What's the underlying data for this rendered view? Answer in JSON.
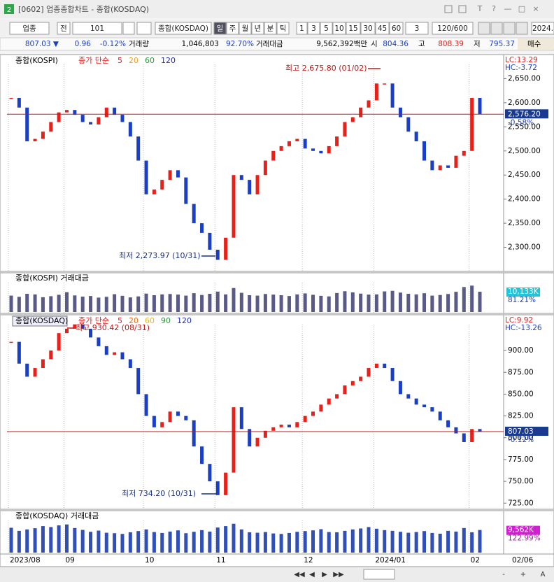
{
  "window": {
    "number": "2",
    "title": "[0602] 업종종합차트 - 종합(KOSDAQ)",
    "controls": [
      "T",
      "?",
      "—",
      "□",
      "×"
    ]
  },
  "toolbar": {
    "items": [
      "업종",
      "전",
      "101",
      "종합(KOSDAQ)",
      "일",
      "주",
      "월",
      "년",
      "분",
      "틱",
      "1",
      "3",
      "5",
      "10",
      "15",
      "30",
      "45",
      "60",
      "3",
      "120/600",
      "2024."
    ]
  },
  "quote": {
    "items": [
      {
        "text": "807.03 ▼",
        "color": "#1a3fc4"
      },
      {
        "text": "0.96",
        "color": "#1a3fc4"
      },
      {
        "text": "-0.12%",
        "color": "#1a3fc4"
      },
      {
        "text": "거래량",
        "color": "#000000"
      },
      {
        "text": "1,046,803",
        "color": "#000000"
      },
      {
        "text": "92.70%",
        "color": "#1a3fc4"
      },
      {
        "text": "거래대금",
        "color": "#000000"
      },
      {
        "text": "9,562,392백만",
        "color": "#000000"
      },
      {
        "text": "시",
        "color": "#000000"
      },
      {
        "text": "804.36",
        "color": "#1a3fc4"
      },
      {
        "text": "고",
        "color": "#000000"
      },
      {
        "text": "808.39",
        "color": "#e8201a"
      },
      {
        "text": "저",
        "color": "#000000"
      },
      {
        "text": "795.37",
        "color": "#1a3fc4"
      },
      {
        "text": "매수",
        "color": "#000000"
      }
    ]
  },
  "x_axis": {
    "categories": [
      "2023/08",
      null,
      null,
      null,
      null,
      null,
      null,
      "09",
      null,
      null,
      null,
      null,
      null,
      null,
      null,
      null,
      null,
      "10",
      null,
      null,
      null,
      null,
      null,
      null,
      null,
      null,
      "11",
      null,
      null,
      null,
      null,
      null,
      null,
      null,
      null,
      null,
      null,
      "12",
      null,
      null,
      null,
      null,
      null,
      null,
      null,
      null,
      "2024/01",
      null,
      null,
      null,
      null,
      null,
      null,
      null,
      null,
      null,
      null,
      null,
      "02",
      null
    ],
    "last_date": "02/06"
  },
  "chart_data": [
    {
      "type": "candle",
      "title": "종합(KOSPI)",
      "legend_label": "종가 단순",
      "ma_periods": [
        {
          "label": "5",
          "color": "#e02020"
        },
        {
          "label": "20",
          "color": "#f0a020"
        },
        {
          "label": "60",
          "color": "#2a9a3a"
        },
        {
          "label": "120",
          "color": "#2030c0"
        }
      ],
      "values": [
        2610,
        2590,
        2520,
        2525,
        2540,
        2560,
        2580,
        2585,
        2575,
        2560,
        2555,
        2570,
        2590,
        2575,
        2560,
        2530,
        2480,
        2410,
        2420,
        2440,
        2460,
        2445,
        2390,
        2350,
        2330,
        2295,
        2274,
        2320,
        2450,
        2440,
        2410,
        2450,
        2480,
        2500,
        2510,
        2520,
        2525,
        2505,
        2500,
        2495,
        2510,
        2530,
        2560,
        2570,
        2590,
        2605,
        2640,
        2640,
        2590,
        2570,
        2540,
        2520,
        2480,
        2460,
        2470,
        2465,
        2490,
        2500,
        2610,
        2576.2
      ],
      "ylim": [
        2250,
        2700
      ],
      "yticks": [
        {
          "value": 2650,
          "label": "2,650.00"
        },
        {
          "value": 2600,
          "label": "2,600.00"
        },
        {
          "value": 2550,
          "label": "2,550.00"
        },
        {
          "value": 2500,
          "label": "2,500.00"
        },
        {
          "value": 2450,
          "label": "2,450.00"
        },
        {
          "value": 2400,
          "label": "2,400.00"
        },
        {
          "value": 2350,
          "label": "2,350.00"
        },
        {
          "value": 2300,
          "label": "2,300.00"
        }
      ],
      "up_color": "#e8201a",
      "down_color": "#1a3fc4",
      "current_label": "2,576.20",
      "change_label": "-0.58%",
      "lc": "LC:13.29",
      "hc": "HC:-3.72",
      "high_note": "최고 2,675.80 (01/02)",
      "low_note": "최저 2,273.97 (10/31)"
    },
    {
      "type": "bar",
      "title": "종합(KOSPI) 거래대금",
      "color": "#5a5a88",
      "values": [
        8200,
        7600,
        9100,
        8800,
        7400,
        7900,
        8600,
        9900,
        8300,
        7700,
        8000,
        7200,
        7600,
        8900,
        8100,
        7300,
        7800,
        9200,
        8400,
        8800,
        9000,
        8700,
        8200,
        9400,
        8500,
        9100,
        10200,
        8800,
        12000,
        9600,
        8400,
        8200,
        9000,
        8700,
        8400,
        8000,
        8800,
        9300,
        8600,
        8100,
        7800,
        9500,
        10400,
        9800,
        9200,
        8700,
        8800,
        10300,
        10600,
        9700,
        9100,
        8800,
        9400,
        8200,
        8500,
        9000,
        10100,
        12500,
        13200,
        10133
      ],
      "ylim": [
        0,
        14000
      ],
      "last_label": "10,133K",
      "last_color": "#22c4d8",
      "ratio_label": "81.21%",
      "ratio_color": "#1a3fc4"
    },
    {
      "type": "candle",
      "title": "종합(KOSDAQ)",
      "legend_label": "종가 단순",
      "ma_periods": [
        {
          "label": "5",
          "color": "#e02020"
        },
        {
          "label": "20",
          "color": "#f07010"
        },
        {
          "label": "60",
          "color": "#e8b820"
        },
        {
          "label": "90",
          "color": "#2a9a3a"
        },
        {
          "label": "120",
          "color": "#2030c0"
        }
      ],
      "values": [
        910,
        885,
        870,
        880,
        890,
        900,
        920,
        925,
        930,
        925,
        915,
        905,
        895,
        898,
        890,
        880,
        850,
        825,
        812,
        818,
        830,
        825,
        820,
        790,
        770,
        750,
        734.2,
        760,
        835,
        810,
        790,
        800,
        808,
        812,
        815,
        812,
        818,
        825,
        830,
        838,
        845,
        850,
        860,
        865,
        870,
        880,
        885,
        880,
        865,
        850,
        845,
        838,
        835,
        830,
        820,
        812,
        805,
        795,
        810,
        807.03
      ],
      "ylim": [
        718,
        941
      ],
      "yticks": [
        {
          "value": 900,
          "label": "900.00"
        },
        {
          "value": 875,
          "label": "875.00"
        },
        {
          "value": 850,
          "label": "850.00"
        },
        {
          "value": 825,
          "label": "825.00"
        },
        {
          "value": 800,
          "label": "800.00"
        },
        {
          "value": 775,
          "label": "775.00"
        },
        {
          "value": 750,
          "label": "750.00"
        },
        {
          "value": 725,
          "label": "725.00"
        }
      ],
      "up_color": "#e8201a",
      "down_color": "#1a3fc4",
      "current_label": "807.03",
      "change_label": "-0.12%",
      "lc": "LC:9.92",
      "hc": "HC:-13.26",
      "high_note": "최고 930.42 (08/31)",
      "low_note": "최저 734.20 (10/31)"
    },
    {
      "type": "bar",
      "title": "종합(KOSDAQ) 거래대금",
      "color": "#3050b8",
      "values": [
        10500,
        9200,
        9800,
        10300,
        11200,
        10800,
        11500,
        11900,
        10400,
        9600,
        8800,
        9300,
        8400,
        8200,
        7900,
        8600,
        9100,
        9800,
        8700,
        8300,
        8900,
        9400,
        8200,
        8800,
        9500,
        8900,
        10600,
        11200,
        12200,
        9800,
        8600,
        8400,
        8700,
        8100,
        7900,
        8300,
        8800,
        9100,
        9400,
        9900,
        8700,
        8600,
        9200,
        9800,
        10200,
        10800,
        10100,
        9500,
        9200,
        8800,
        8400,
        8700,
        9100,
        8300,
        8000,
        9200,
        8900,
        10400,
        8600,
        9562
      ],
      "ylim": [
        0,
        13000
      ],
      "last_label": "9,562K",
      "last_color": "#d020d0",
      "ratio_label": "122.99%",
      "ratio_color": "#a020a0"
    }
  ],
  "scroll_controls": [
    "◀◀",
    "◀",
    "▶",
    "▶▶",
    "-",
    "+",
    "A"
  ]
}
